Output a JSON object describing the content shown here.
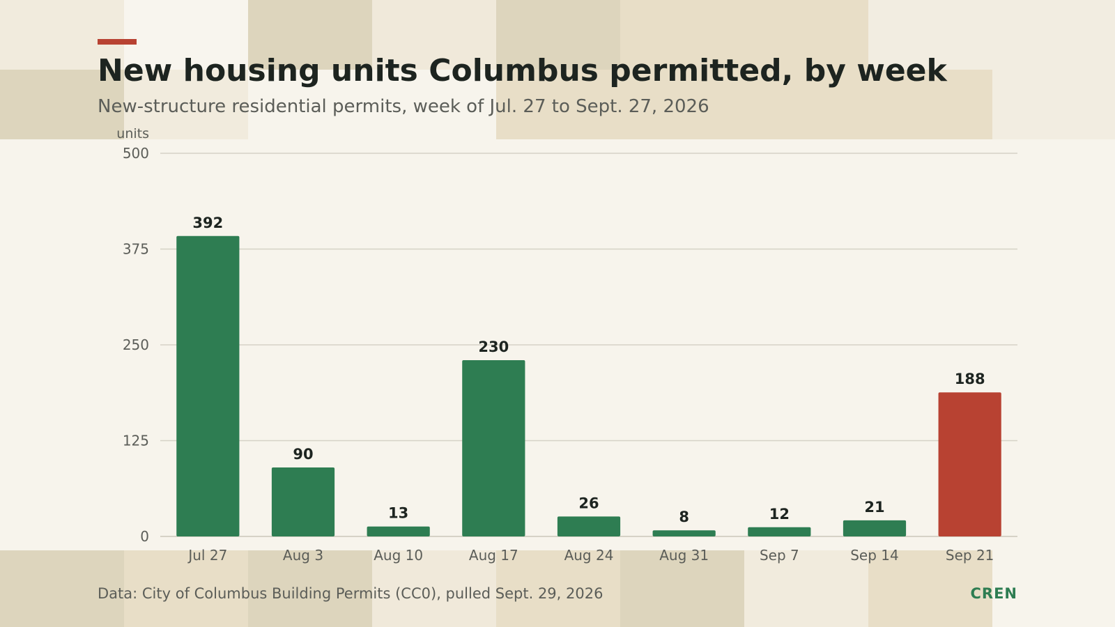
{
  "header": {
    "title": "New housing units Columbus permitted, by week",
    "subtitle": "New-structure residential permits, week of Jul. 27 to Sept. 27, 2026"
  },
  "footer": {
    "source": "Data: City of Columbus Building Permits (CC0), pulled Sept. 29, 2026",
    "brand": "CREN"
  },
  "colors": {
    "bar": "#2e7d52",
    "highlight": "#b84232",
    "grid": "#d6d2c6",
    "axis_text": "#5b5d58",
    "label_text": "#1d2420"
  },
  "chart_data": {
    "type": "bar",
    "ylabel": "units",
    "xlabel": "",
    "ylim": [
      0,
      500
    ],
    "yticks": [
      0,
      125,
      250,
      375,
      500
    ],
    "grid": true,
    "categories": [
      "Jul 27",
      "Aug 3",
      "Aug 10",
      "Aug 17",
      "Aug 24",
      "Aug 31",
      "Sep 7",
      "Sep 14",
      "Sep 21"
    ],
    "values": [
      392,
      90,
      13,
      230,
      26,
      8,
      12,
      21,
      188
    ],
    "highlight_index": 8
  }
}
